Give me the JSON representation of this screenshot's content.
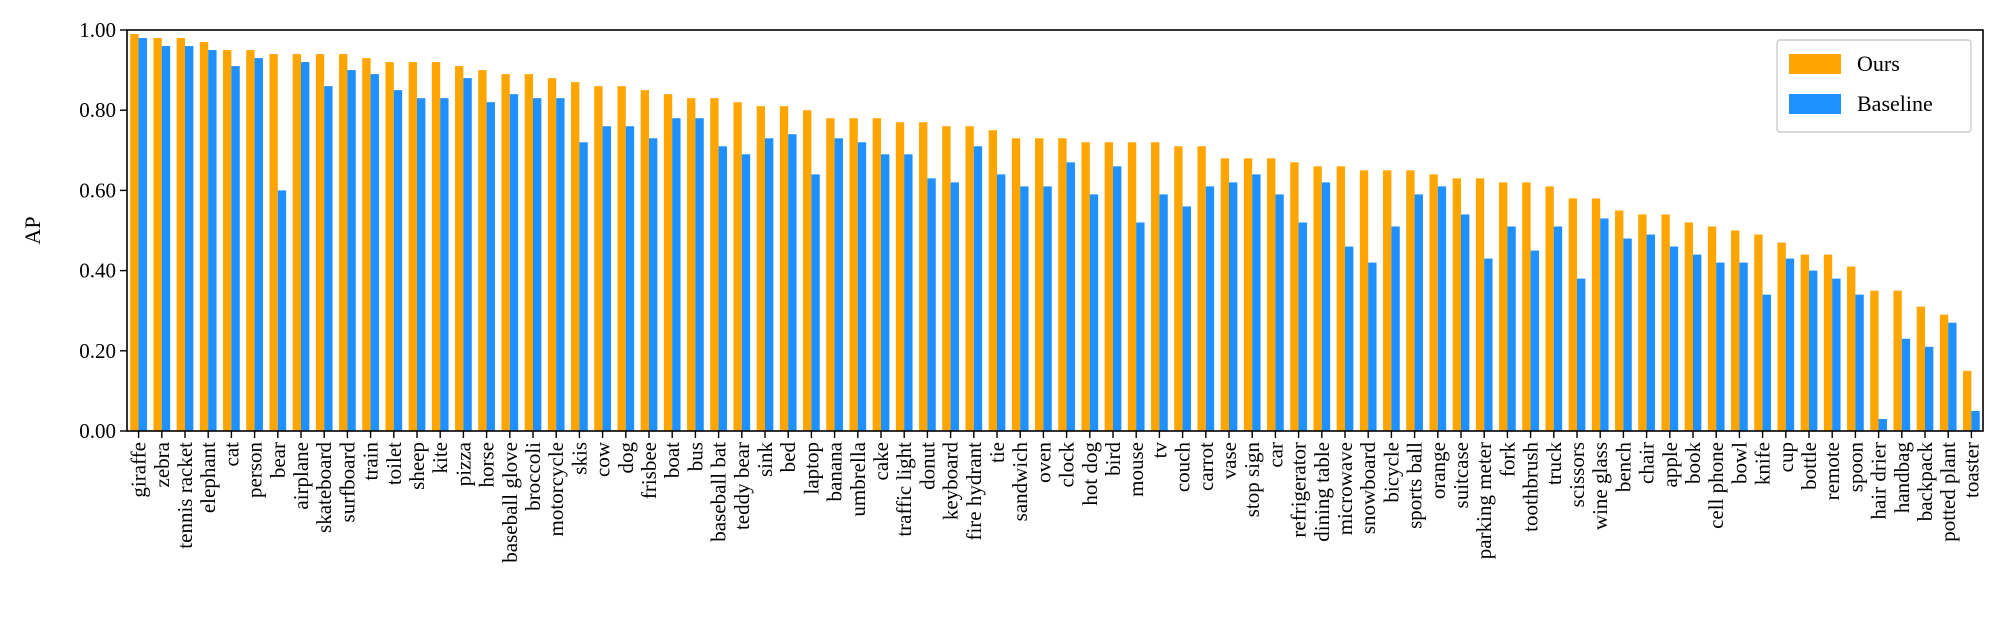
{
  "chart_data": {
    "type": "bar",
    "title": "",
    "xlabel": "",
    "ylabel": "AP",
    "ylim": [
      0,
      1
    ],
    "yticks": [
      "0.00",
      "0.20",
      "0.40",
      "0.60",
      "0.80",
      "1.00"
    ],
    "grid": false,
    "legend_position": "top-right",
    "categories": [
      "giraffe",
      "zebra",
      "tennis racket",
      "elephant",
      "cat",
      "person",
      "bear",
      "airplane",
      "skateboard",
      "surfboard",
      "train",
      "toilet",
      "sheep",
      "kite",
      "pizza",
      "horse",
      "baseball glove",
      "broccoli",
      "motorcycle",
      "skis",
      "cow",
      "dog",
      "frisbee",
      "boat",
      "bus",
      "baseball bat",
      "teddy bear",
      "sink",
      "bed",
      "laptop",
      "banana",
      "umbrella",
      "cake",
      "traffic light",
      "donut",
      "keyboard",
      "fire hydrant",
      "tie",
      "sandwich",
      "oven",
      "clock",
      "hot dog",
      "bird",
      "mouse",
      "tv",
      "couch",
      "carrot",
      "vase",
      "stop sign",
      "car",
      "refrigerator",
      "dining table",
      "microwave",
      "snowboard",
      "bicycle",
      "sports ball",
      "orange",
      "suitcase",
      "parking meter",
      "fork",
      "toothbrush",
      "truck",
      "scissors",
      "wine glass",
      "bench",
      "chair",
      "apple",
      "book",
      "cell phone",
      "bowl",
      "knife",
      "cup",
      "bottle",
      "remote",
      "spoon",
      "hair drier",
      "handbag",
      "backpack",
      "potted plant",
      "toaster"
    ],
    "series": [
      {
        "name": "Ours",
        "color": "#FFA500",
        "values": [
          0.99,
          0.98,
          0.98,
          0.97,
          0.95,
          0.95,
          0.94,
          0.94,
          0.94,
          0.94,
          0.93,
          0.92,
          0.92,
          0.92,
          0.91,
          0.9,
          0.89,
          0.89,
          0.88,
          0.87,
          0.86,
          0.86,
          0.85,
          0.84,
          0.83,
          0.83,
          0.82,
          0.81,
          0.81,
          0.8,
          0.78,
          0.78,
          0.78,
          0.77,
          0.77,
          0.76,
          0.76,
          0.75,
          0.73,
          0.73,
          0.73,
          0.72,
          0.72,
          0.72,
          0.72,
          0.71,
          0.71,
          0.68,
          0.68,
          0.68,
          0.67,
          0.66,
          0.66,
          0.65,
          0.65,
          0.65,
          0.64,
          0.63,
          0.63,
          0.62,
          0.62,
          0.61,
          0.58,
          0.58,
          0.55,
          0.54,
          0.54,
          0.52,
          0.51,
          0.5,
          0.49,
          0.47,
          0.44,
          0.44,
          0.41,
          0.35,
          0.35,
          0.31,
          0.29,
          0.15
        ]
      },
      {
        "name": "Baseline",
        "color": "#1E90FF",
        "values": [
          0.98,
          0.96,
          0.96,
          0.95,
          0.91,
          0.93,
          0.6,
          0.92,
          0.86,
          0.9,
          0.89,
          0.85,
          0.83,
          0.83,
          0.88,
          0.82,
          0.84,
          0.83,
          0.83,
          0.72,
          0.76,
          0.76,
          0.73,
          0.78,
          0.78,
          0.71,
          0.69,
          0.73,
          0.74,
          0.64,
          0.73,
          0.72,
          0.69,
          0.69,
          0.63,
          0.62,
          0.71,
          0.64,
          0.61,
          0.61,
          0.67,
          0.59,
          0.66,
          0.52,
          0.59,
          0.56,
          0.61,
          0.62,
          0.64,
          0.59,
          0.52,
          0.62,
          0.46,
          0.42,
          0.51,
          0.59,
          0.61,
          0.54,
          0.43,
          0.51,
          0.45,
          0.51,
          0.38,
          0.53,
          0.48,
          0.49,
          0.46,
          0.44,
          0.42,
          0.42,
          0.34,
          0.43,
          0.4,
          0.38,
          0.34,
          0.03,
          0.23,
          0.21,
          0.27,
          0.05
        ]
      }
    ]
  }
}
